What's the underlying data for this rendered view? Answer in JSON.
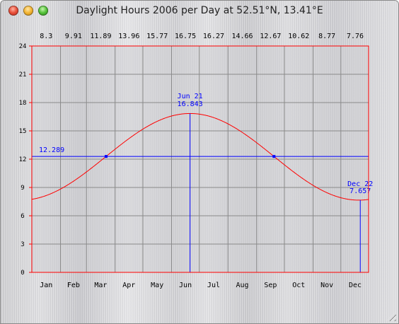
{
  "window": {
    "title": "Daylight Hours 2006 per Day at 52.51°N, 13.41°E",
    "buttons": {
      "close": "close",
      "minimize": "minimize",
      "zoom": "zoom"
    }
  },
  "colors": {
    "plot_background": "#cfcfd3",
    "curve": "#ff0000",
    "frame": "#ff0000",
    "markers": "#0000ff",
    "grid": "#8a8a8a",
    "text": "#000000",
    "annotation_text": "#0000ff"
  },
  "chart_data": {
    "type": "line",
    "title": "Daylight Hours 2006 per Day at 52.51°N, 13.41°E",
    "xlabel": "",
    "ylabel": "",
    "x_range_days": [
      1,
      365
    ],
    "ylim": [
      0,
      24
    ],
    "y_ticks": [
      "0",
      "3",
      "6",
      "9",
      "12",
      "15",
      "18",
      "21",
      "24"
    ],
    "month_labels": [
      "Jan",
      "Feb",
      "Mar",
      "Apr",
      "May",
      "Jun",
      "Jul",
      "Aug",
      "Sep",
      "Oct",
      "Nov",
      "Dec"
    ],
    "monthly_average_hours": [
      "8.3",
      "9.91",
      "11.89",
      "13.96",
      "15.77",
      "16.75",
      "16.27",
      "14.66",
      "12.67",
      "10.62",
      "8.77",
      "7.76"
    ],
    "grid": true,
    "series": [
      {
        "name": "",
        "min_hours": 7.657,
        "max_hours": 16.843,
        "min_day": 356,
        "max_day": 172
      }
    ],
    "annotations": {
      "reference_line": {
        "value": 12.289,
        "label": "12.289"
      },
      "crossings": [
        {
          "x": "Mar",
          "y": 12.289
        },
        {
          "x": "Sep",
          "y": 12.289
        }
      ],
      "max_marker": {
        "date": "Jun 21",
        "value": "16.843",
        "day": 172
      },
      "min_marker": {
        "date": "Dec 22",
        "value": "7.657",
        "day": 356
      }
    }
  }
}
